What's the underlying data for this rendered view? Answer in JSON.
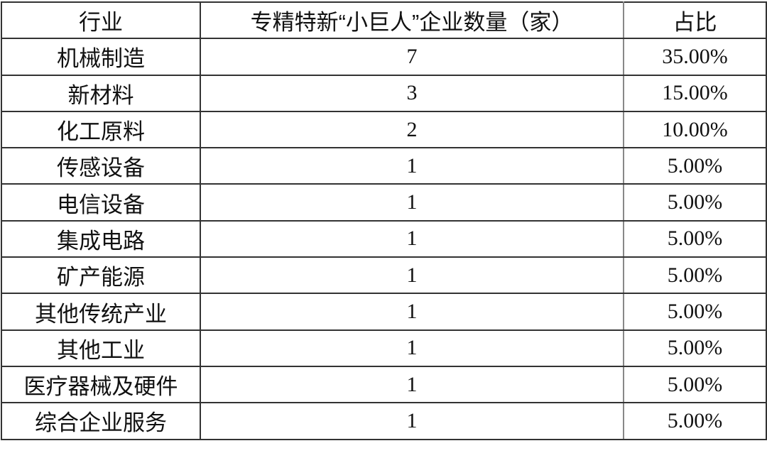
{
  "table": {
    "headers": [
      "行业",
      "专精特新“小巨人”企业数量（家）",
      "占比"
    ],
    "rows": [
      {
        "industry": "机械制造",
        "count": "7",
        "share": "35.00%"
      },
      {
        "industry": "新材料",
        "count": "3",
        "share": "15.00%"
      },
      {
        "industry": "化工原料",
        "count": "2",
        "share": "10.00%"
      },
      {
        "industry": "传感设备",
        "count": "1",
        "share": "5.00%"
      },
      {
        "industry": "电信设备",
        "count": "1",
        "share": "5.00%"
      },
      {
        "industry": "集成电路",
        "count": "1",
        "share": "5.00%"
      },
      {
        "industry": "矿产能源",
        "count": "1",
        "share": "5.00%"
      },
      {
        "industry": "其他传统产业",
        "count": "1",
        "share": "5.00%"
      },
      {
        "industry": "其他工业",
        "count": "1",
        "share": "5.00%"
      },
      {
        "industry": "医疗器械及硬件",
        "count": "1",
        "share": "5.00%"
      },
      {
        "industry": "综合企业服务",
        "count": "1",
        "share": "5.00%"
      }
    ]
  }
}
